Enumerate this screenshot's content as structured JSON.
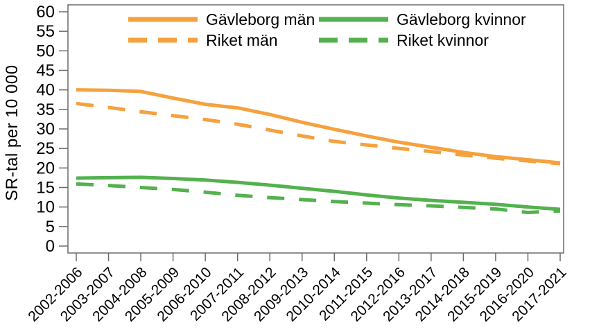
{
  "chart_data": {
    "type": "line",
    "title": "",
    "ylabel": "SR-tal per 10 000",
    "xlabel": "",
    "ylim": [
      0,
      60
    ],
    "ytick_step": 5,
    "grid": false,
    "legend_position": "top-inside",
    "axis_color": "#6b6b6b",
    "text_color": "#000000",
    "categories": [
      "2002-2006",
      "2003-2007",
      "2004-2008",
      "2005-2009",
      "2006-2010",
      "2007-2011",
      "2008-2012",
      "2009-2013",
      "2010-2014",
      "2011-2015",
      "2012-2016",
      "2013-2017",
      "2014-2018",
      "2015-2019",
      "2016-2020",
      "2017-2021"
    ],
    "series": [
      {
        "name": "Gävleborg män",
        "key": "gavleborg-man",
        "color": "#F5A13D",
        "style": "solid",
        "values": [
          40.0,
          39.9,
          39.6,
          37.9,
          36.3,
          35.4,
          33.7,
          31.7,
          29.9,
          28.2,
          26.6,
          25.3,
          24.0,
          22.9,
          22.1,
          21.3
        ]
      },
      {
        "name": "Riket män",
        "key": "riket-man",
        "color": "#F5A13D",
        "style": "dashed",
        "values": [
          36.5,
          35.5,
          34.4,
          33.4,
          32.4,
          31.2,
          29.7,
          28.2,
          26.8,
          25.9,
          25.0,
          24.2,
          23.3,
          22.5,
          21.8,
          21.1
        ]
      },
      {
        "name": "Gävleborg kvinnor",
        "key": "gavleborg-kvinnor",
        "color": "#53B14E",
        "style": "solid",
        "values": [
          17.4,
          17.5,
          17.6,
          17.3,
          16.9,
          16.3,
          15.6,
          14.8,
          14.0,
          13.1,
          12.3,
          11.7,
          11.2,
          10.7,
          10.0,
          9.4
        ]
      },
      {
        "name": "Riket kvinnor",
        "key": "riket-kvinnor",
        "color": "#53B14E",
        "style": "dashed",
        "values": [
          15.9,
          15.5,
          15.0,
          14.5,
          13.8,
          13.0,
          12.4,
          11.9,
          11.4,
          11.0,
          10.6,
          10.3,
          9.9,
          9.5,
          8.6,
          9.0
        ]
      }
    ]
  }
}
